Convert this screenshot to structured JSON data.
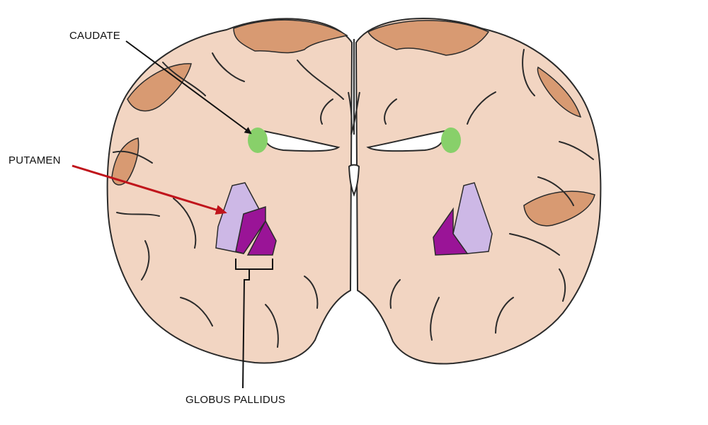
{
  "labels": {
    "caudate": "CAUDATE",
    "putamen": "PUTAMEN",
    "globus_pallidus": "GLOBUS PALLIDUS"
  },
  "colors": {
    "background": "#ffffff",
    "brain_tissue": "#f2d5c2",
    "gyri_dark": "#d89a72",
    "outline": "#2b2b2b",
    "ventricle": "#ffffff",
    "caudate": "#88d06a",
    "putamen": "#cdb8e6",
    "globus_pallidus": "#9a1497",
    "putamen_arrow": "#c0141b",
    "caudate_arrow": "#111111"
  }
}
